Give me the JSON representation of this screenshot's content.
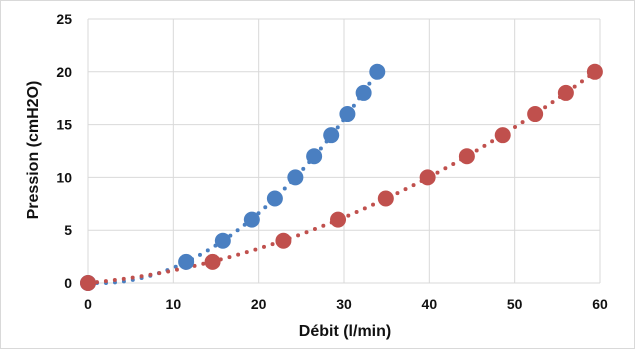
{
  "chart_data": {
    "type": "scatter",
    "title": "",
    "xlabel": "Débit (l/min)",
    "ylabel": "Pression (cmH2O)",
    "xlim": [
      0,
      60
    ],
    "ylim": [
      0,
      25
    ],
    "x_ticks": [
      0,
      10,
      20,
      30,
      40,
      50,
      60
    ],
    "y_ticks": [
      0,
      5,
      10,
      15,
      20,
      25
    ],
    "grid": true,
    "legend": "none",
    "series": [
      {
        "color": "#4a7fc1",
        "trendline": "dotted",
        "points": [
          {
            "x": 0,
            "y": 0
          },
          {
            "x": 11.5,
            "y": 2
          },
          {
            "x": 15.8,
            "y": 4
          },
          {
            "x": 19.2,
            "y": 6
          },
          {
            "x": 21.9,
            "y": 8
          },
          {
            "x": 24.3,
            "y": 10
          },
          {
            "x": 26.5,
            "y": 12
          },
          {
            "x": 28.5,
            "y": 14
          },
          {
            "x": 30.4,
            "y": 16
          },
          {
            "x": 32.3,
            "y": 18
          },
          {
            "x": 33.9,
            "y": 20
          }
        ]
      },
      {
        "color": "#c0504d",
        "trendline": "dotted",
        "points": [
          {
            "x": 0,
            "y": 0
          },
          {
            "x": 14.6,
            "y": 2
          },
          {
            "x": 22.9,
            "y": 4
          },
          {
            "x": 29.3,
            "y": 6
          },
          {
            "x": 34.9,
            "y": 8
          },
          {
            "x": 39.8,
            "y": 10
          },
          {
            "x": 44.4,
            "y": 12
          },
          {
            "x": 48.6,
            "y": 14
          },
          {
            "x": 52.4,
            "y": 16
          },
          {
            "x": 56.0,
            "y": 18
          },
          {
            "x": 59.4,
            "y": 20
          }
        ]
      }
    ]
  }
}
